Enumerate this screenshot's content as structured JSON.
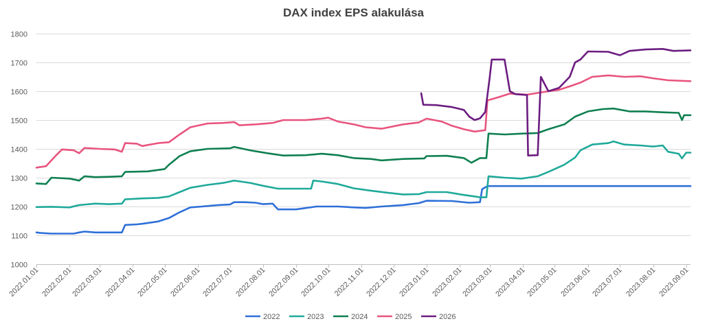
{
  "chart_data": {
    "type": "line",
    "title": "DAX index EPS alakulása",
    "xlabel": "",
    "ylabel": "",
    "ylim": [
      1000,
      1800
    ],
    "y_ticks": [
      1000,
      1100,
      1200,
      1300,
      1400,
      1500,
      1600,
      1700,
      1800
    ],
    "x_range": [
      "2022-01-01",
      "2023-09-05"
    ],
    "x_tick_labels": [
      "2022.01.01",
      "2022.02.01",
      "2022.03.01",
      "2022.04.01",
      "2022.05.01",
      "2022.06.01",
      "2022.07.01",
      "2022.08.01",
      "2022.09.01",
      "2022.10.01",
      "2022.11.01",
      "2022.12.01",
      "2023.01.01",
      "2023.02.01",
      "2023.03.01",
      "2023.04.01",
      "2023.05.01",
      "2023.06.01",
      "2023.07.01",
      "2023.08.01",
      "2023.09.01"
    ],
    "x_tick_dates": [
      "2022-01-01",
      "2022-02-01",
      "2022-03-01",
      "2022-04-01",
      "2022-05-01",
      "2022-06-01",
      "2022-07-01",
      "2022-08-01",
      "2022-09-01",
      "2022-10-01",
      "2022-11-01",
      "2022-12-01",
      "2023-01-01",
      "2023-02-01",
      "2023-03-01",
      "2023-04-01",
      "2023-05-01",
      "2023-06-01",
      "2023-07-01",
      "2023-08-01",
      "2023-09-01"
    ],
    "grid": true,
    "legend_position": "bottom",
    "series": [
      {
        "name": "2022",
        "color": "#2E6FD8",
        "points": [
          [
            "2022-01-01",
            1110
          ],
          [
            "2022-01-05",
            1108
          ],
          [
            "2022-01-15",
            1106
          ],
          [
            "2022-02-05",
            1106
          ],
          [
            "2022-02-10",
            1110
          ],
          [
            "2022-02-15",
            1113
          ],
          [
            "2022-02-25",
            1110
          ],
          [
            "2022-03-10",
            1110
          ],
          [
            "2022-03-22",
            1110
          ],
          [
            "2022-03-25",
            1136
          ],
          [
            "2022-04-05",
            1138
          ],
          [
            "2022-04-10",
            1140
          ],
          [
            "2022-04-25",
            1148
          ],
          [
            "2022-05-05",
            1160
          ],
          [
            "2022-05-15",
            1180
          ],
          [
            "2022-05-25",
            1197
          ],
          [
            "2022-06-05",
            1200
          ],
          [
            "2022-06-20",
            1205
          ],
          [
            "2022-07-01",
            1207
          ],
          [
            "2022-07-05",
            1215
          ],
          [
            "2022-07-15",
            1215
          ],
          [
            "2022-07-25",
            1213
          ],
          [
            "2022-08-01",
            1208
          ],
          [
            "2022-08-10",
            1210
          ],
          [
            "2022-08-15",
            1190
          ],
          [
            "2022-09-01",
            1190
          ],
          [
            "2022-09-20",
            1200
          ],
          [
            "2022-10-10",
            1200
          ],
          [
            "2022-10-25",
            1197
          ],
          [
            "2022-11-05",
            1195
          ],
          [
            "2022-11-20",
            1200
          ],
          [
            "2022-12-10",
            1205
          ],
          [
            "2022-12-25",
            1212
          ],
          [
            "2023-01-01",
            1220
          ],
          [
            "2023-01-25",
            1219
          ],
          [
            "2023-02-10",
            1213
          ],
          [
            "2023-02-20",
            1215
          ],
          [
            "2023-02-22",
            1260
          ],
          [
            "2023-02-27",
            1271
          ],
          [
            "2023-09-05",
            1271
          ]
        ]
      },
      {
        "name": "2023",
        "color": "#1FA99A",
        "points": [
          [
            "2022-01-01",
            1198
          ],
          [
            "2022-01-15",
            1199
          ],
          [
            "2022-02-01",
            1197
          ],
          [
            "2022-02-10",
            1205
          ],
          [
            "2022-02-25",
            1210
          ],
          [
            "2022-03-10",
            1208
          ],
          [
            "2022-03-22",
            1210
          ],
          [
            "2022-03-25",
            1225
          ],
          [
            "2022-04-10",
            1228
          ],
          [
            "2022-04-25",
            1230
          ],
          [
            "2022-05-05",
            1235
          ],
          [
            "2022-05-15",
            1250
          ],
          [
            "2022-05-25",
            1265
          ],
          [
            "2022-06-10",
            1275
          ],
          [
            "2022-06-25",
            1282
          ],
          [
            "2022-07-05",
            1290
          ],
          [
            "2022-07-20",
            1282
          ],
          [
            "2022-08-01",
            1272
          ],
          [
            "2022-08-15",
            1262
          ],
          [
            "2022-09-01",
            1262
          ],
          [
            "2022-09-15",
            1262
          ],
          [
            "2022-09-17",
            1290
          ],
          [
            "2022-09-25",
            1287
          ],
          [
            "2022-10-10",
            1278
          ],
          [
            "2022-10-25",
            1263
          ],
          [
            "2022-11-10",
            1255
          ],
          [
            "2022-11-25",
            1248
          ],
          [
            "2022-12-10",
            1242
          ],
          [
            "2022-12-25",
            1243
          ],
          [
            "2023-01-01",
            1250
          ],
          [
            "2023-01-20",
            1250
          ],
          [
            "2023-02-05",
            1240
          ],
          [
            "2023-02-15",
            1235
          ],
          [
            "2023-02-20",
            1232
          ],
          [
            "2023-02-26",
            1232
          ],
          [
            "2023-02-28",
            1305
          ],
          [
            "2023-03-15",
            1300
          ],
          [
            "2023-03-31",
            1297
          ],
          [
            "2023-04-15",
            1305
          ],
          [
            "2023-04-25",
            1320
          ],
          [
            "2023-05-10",
            1345
          ],
          [
            "2023-05-20",
            1370
          ],
          [
            "2023-05-25",
            1395
          ],
          [
            "2023-06-05",
            1415
          ],
          [
            "2023-06-20",
            1420
          ],
          [
            "2023-06-25",
            1426
          ],
          [
            "2023-07-05",
            1415
          ],
          [
            "2023-07-20",
            1412
          ],
          [
            "2023-08-01",
            1408
          ],
          [
            "2023-08-10",
            1412
          ],
          [
            "2023-08-15",
            1390
          ],
          [
            "2023-08-25",
            1383
          ],
          [
            "2023-08-28",
            1367
          ],
          [
            "2023-09-01",
            1387
          ],
          [
            "2023-09-05",
            1387
          ]
        ]
      },
      {
        "name": "2024",
        "color": "#0E7F50",
        "points": [
          [
            "2022-01-01",
            1280
          ],
          [
            "2022-01-10",
            1278
          ],
          [
            "2022-01-15",
            1300
          ],
          [
            "2022-02-01",
            1297
          ],
          [
            "2022-02-10",
            1290
          ],
          [
            "2022-02-15",
            1305
          ],
          [
            "2022-02-25",
            1302
          ],
          [
            "2022-03-10",
            1303
          ],
          [
            "2022-03-22",
            1305
          ],
          [
            "2022-03-25",
            1320
          ],
          [
            "2022-04-15",
            1322
          ],
          [
            "2022-05-01",
            1330
          ],
          [
            "2022-05-05",
            1345
          ],
          [
            "2022-05-15",
            1375
          ],
          [
            "2022-05-25",
            1392
          ],
          [
            "2022-06-10",
            1400
          ],
          [
            "2022-07-01",
            1402
          ],
          [
            "2022-07-05",
            1407
          ],
          [
            "2022-07-20",
            1395
          ],
          [
            "2022-08-05",
            1385
          ],
          [
            "2022-08-20",
            1377
          ],
          [
            "2022-09-10",
            1378
          ],
          [
            "2022-09-25",
            1383
          ],
          [
            "2022-10-10",
            1378
          ],
          [
            "2022-10-25",
            1368
          ],
          [
            "2022-11-10",
            1365
          ],
          [
            "2022-11-20",
            1360
          ],
          [
            "2022-12-10",
            1365
          ],
          [
            "2022-12-30",
            1367
          ],
          [
            "2023-01-01",
            1375
          ],
          [
            "2023-01-20",
            1376
          ],
          [
            "2023-02-05",
            1368
          ],
          [
            "2023-02-12",
            1352
          ],
          [
            "2023-02-20",
            1368
          ],
          [
            "2023-02-26",
            1368
          ],
          [
            "2023-02-28",
            1453
          ],
          [
            "2023-03-15",
            1450
          ],
          [
            "2023-04-01",
            1453
          ],
          [
            "2023-04-15",
            1455
          ],
          [
            "2023-04-25",
            1468
          ],
          [
            "2023-05-10",
            1485
          ],
          [
            "2023-05-20",
            1512
          ],
          [
            "2023-06-01",
            1530
          ],
          [
            "2023-06-15",
            1538
          ],
          [
            "2023-06-25",
            1540
          ],
          [
            "2023-07-10",
            1530
          ],
          [
            "2023-07-25",
            1530
          ],
          [
            "2023-08-10",
            1527
          ],
          [
            "2023-08-25",
            1525
          ],
          [
            "2023-08-28",
            1500
          ],
          [
            "2023-08-30",
            1517
          ],
          [
            "2023-09-05",
            1517
          ]
        ]
      },
      {
        "name": "2025",
        "color": "#E8547E",
        "points": [
          [
            "2022-01-01",
            1335
          ],
          [
            "2022-01-10",
            1340
          ],
          [
            "2022-01-15",
            1360
          ],
          [
            "2022-01-20",
            1380
          ],
          [
            "2022-01-25",
            1398
          ],
          [
            "2022-02-05",
            1395
          ],
          [
            "2022-02-10",
            1385
          ],
          [
            "2022-02-15",
            1403
          ],
          [
            "2022-03-01",
            1400
          ],
          [
            "2022-03-15",
            1398
          ],
          [
            "2022-03-22",
            1390
          ],
          [
            "2022-03-25",
            1420
          ],
          [
            "2022-04-05",
            1418
          ],
          [
            "2022-04-10",
            1410
          ],
          [
            "2022-04-25",
            1420
          ],
          [
            "2022-05-05",
            1423
          ],
          [
            "2022-05-15",
            1450
          ],
          [
            "2022-05-25",
            1475
          ],
          [
            "2022-06-10",
            1488
          ],
          [
            "2022-06-25",
            1490
          ],
          [
            "2022-07-05",
            1493
          ],
          [
            "2022-07-10",
            1482
          ],
          [
            "2022-07-25",
            1485
          ],
          [
            "2022-08-10",
            1490
          ],
          [
            "2022-08-20",
            1500
          ],
          [
            "2022-09-10",
            1500
          ],
          [
            "2022-09-25",
            1505
          ],
          [
            "2022-10-01",
            1508
          ],
          [
            "2022-10-10",
            1495
          ],
          [
            "2022-10-25",
            1485
          ],
          [
            "2022-11-05",
            1475
          ],
          [
            "2022-11-20",
            1470
          ],
          [
            "2022-12-10",
            1485
          ],
          [
            "2022-12-25",
            1492
          ],
          [
            "2023-01-01",
            1505
          ],
          [
            "2023-01-15",
            1495
          ],
          [
            "2023-01-25",
            1480
          ],
          [
            "2023-02-05",
            1468
          ],
          [
            "2023-02-15",
            1460
          ],
          [
            "2023-02-25",
            1465
          ],
          [
            "2023-02-27",
            1568
          ],
          [
            "2023-03-10",
            1580
          ],
          [
            "2023-03-20",
            1592
          ],
          [
            "2023-04-05",
            1588
          ],
          [
            "2023-04-25",
            1600
          ],
          [
            "2023-05-05",
            1605
          ],
          [
            "2023-05-15",
            1617
          ],
          [
            "2023-05-25",
            1630
          ],
          [
            "2023-06-05",
            1650
          ],
          [
            "2023-06-20",
            1655
          ],
          [
            "2023-07-05",
            1650
          ],
          [
            "2023-07-20",
            1652
          ],
          [
            "2023-08-01",
            1645
          ],
          [
            "2023-08-15",
            1638
          ],
          [
            "2023-09-05",
            1635
          ]
        ]
      },
      {
        "name": "2026",
        "color": "#6B1C7F",
        "points": [
          [
            "2022-12-27",
            1593
          ],
          [
            "2022-12-29",
            1553
          ],
          [
            "2023-01-10",
            1552
          ],
          [
            "2023-01-25",
            1545
          ],
          [
            "2023-02-05",
            1535
          ],
          [
            "2023-02-10",
            1512
          ],
          [
            "2023-02-15",
            1500
          ],
          [
            "2023-02-20",
            1506
          ],
          [
            "2023-02-25",
            1528
          ],
          [
            "2023-03-01",
            1645
          ],
          [
            "2023-03-03",
            1710
          ],
          [
            "2023-03-15",
            1710
          ],
          [
            "2023-03-20",
            1600
          ],
          [
            "2023-03-25",
            1590
          ],
          [
            "2023-04-05",
            1587
          ],
          [
            "2023-04-06",
            1377
          ],
          [
            "2023-04-15",
            1378
          ],
          [
            "2023-04-18",
            1650
          ],
          [
            "2023-04-25",
            1600
          ],
          [
            "2023-05-05",
            1612
          ],
          [
            "2023-05-15",
            1650
          ],
          [
            "2023-05-20",
            1700
          ],
          [
            "2023-05-25",
            1710
          ],
          [
            "2023-06-01",
            1738
          ],
          [
            "2023-06-20",
            1737
          ],
          [
            "2023-07-01",
            1725
          ],
          [
            "2023-07-10",
            1740
          ],
          [
            "2023-07-25",
            1745
          ],
          [
            "2023-08-10",
            1747
          ],
          [
            "2023-08-20",
            1740
          ],
          [
            "2023-09-05",
            1742
          ]
        ]
      }
    ]
  }
}
